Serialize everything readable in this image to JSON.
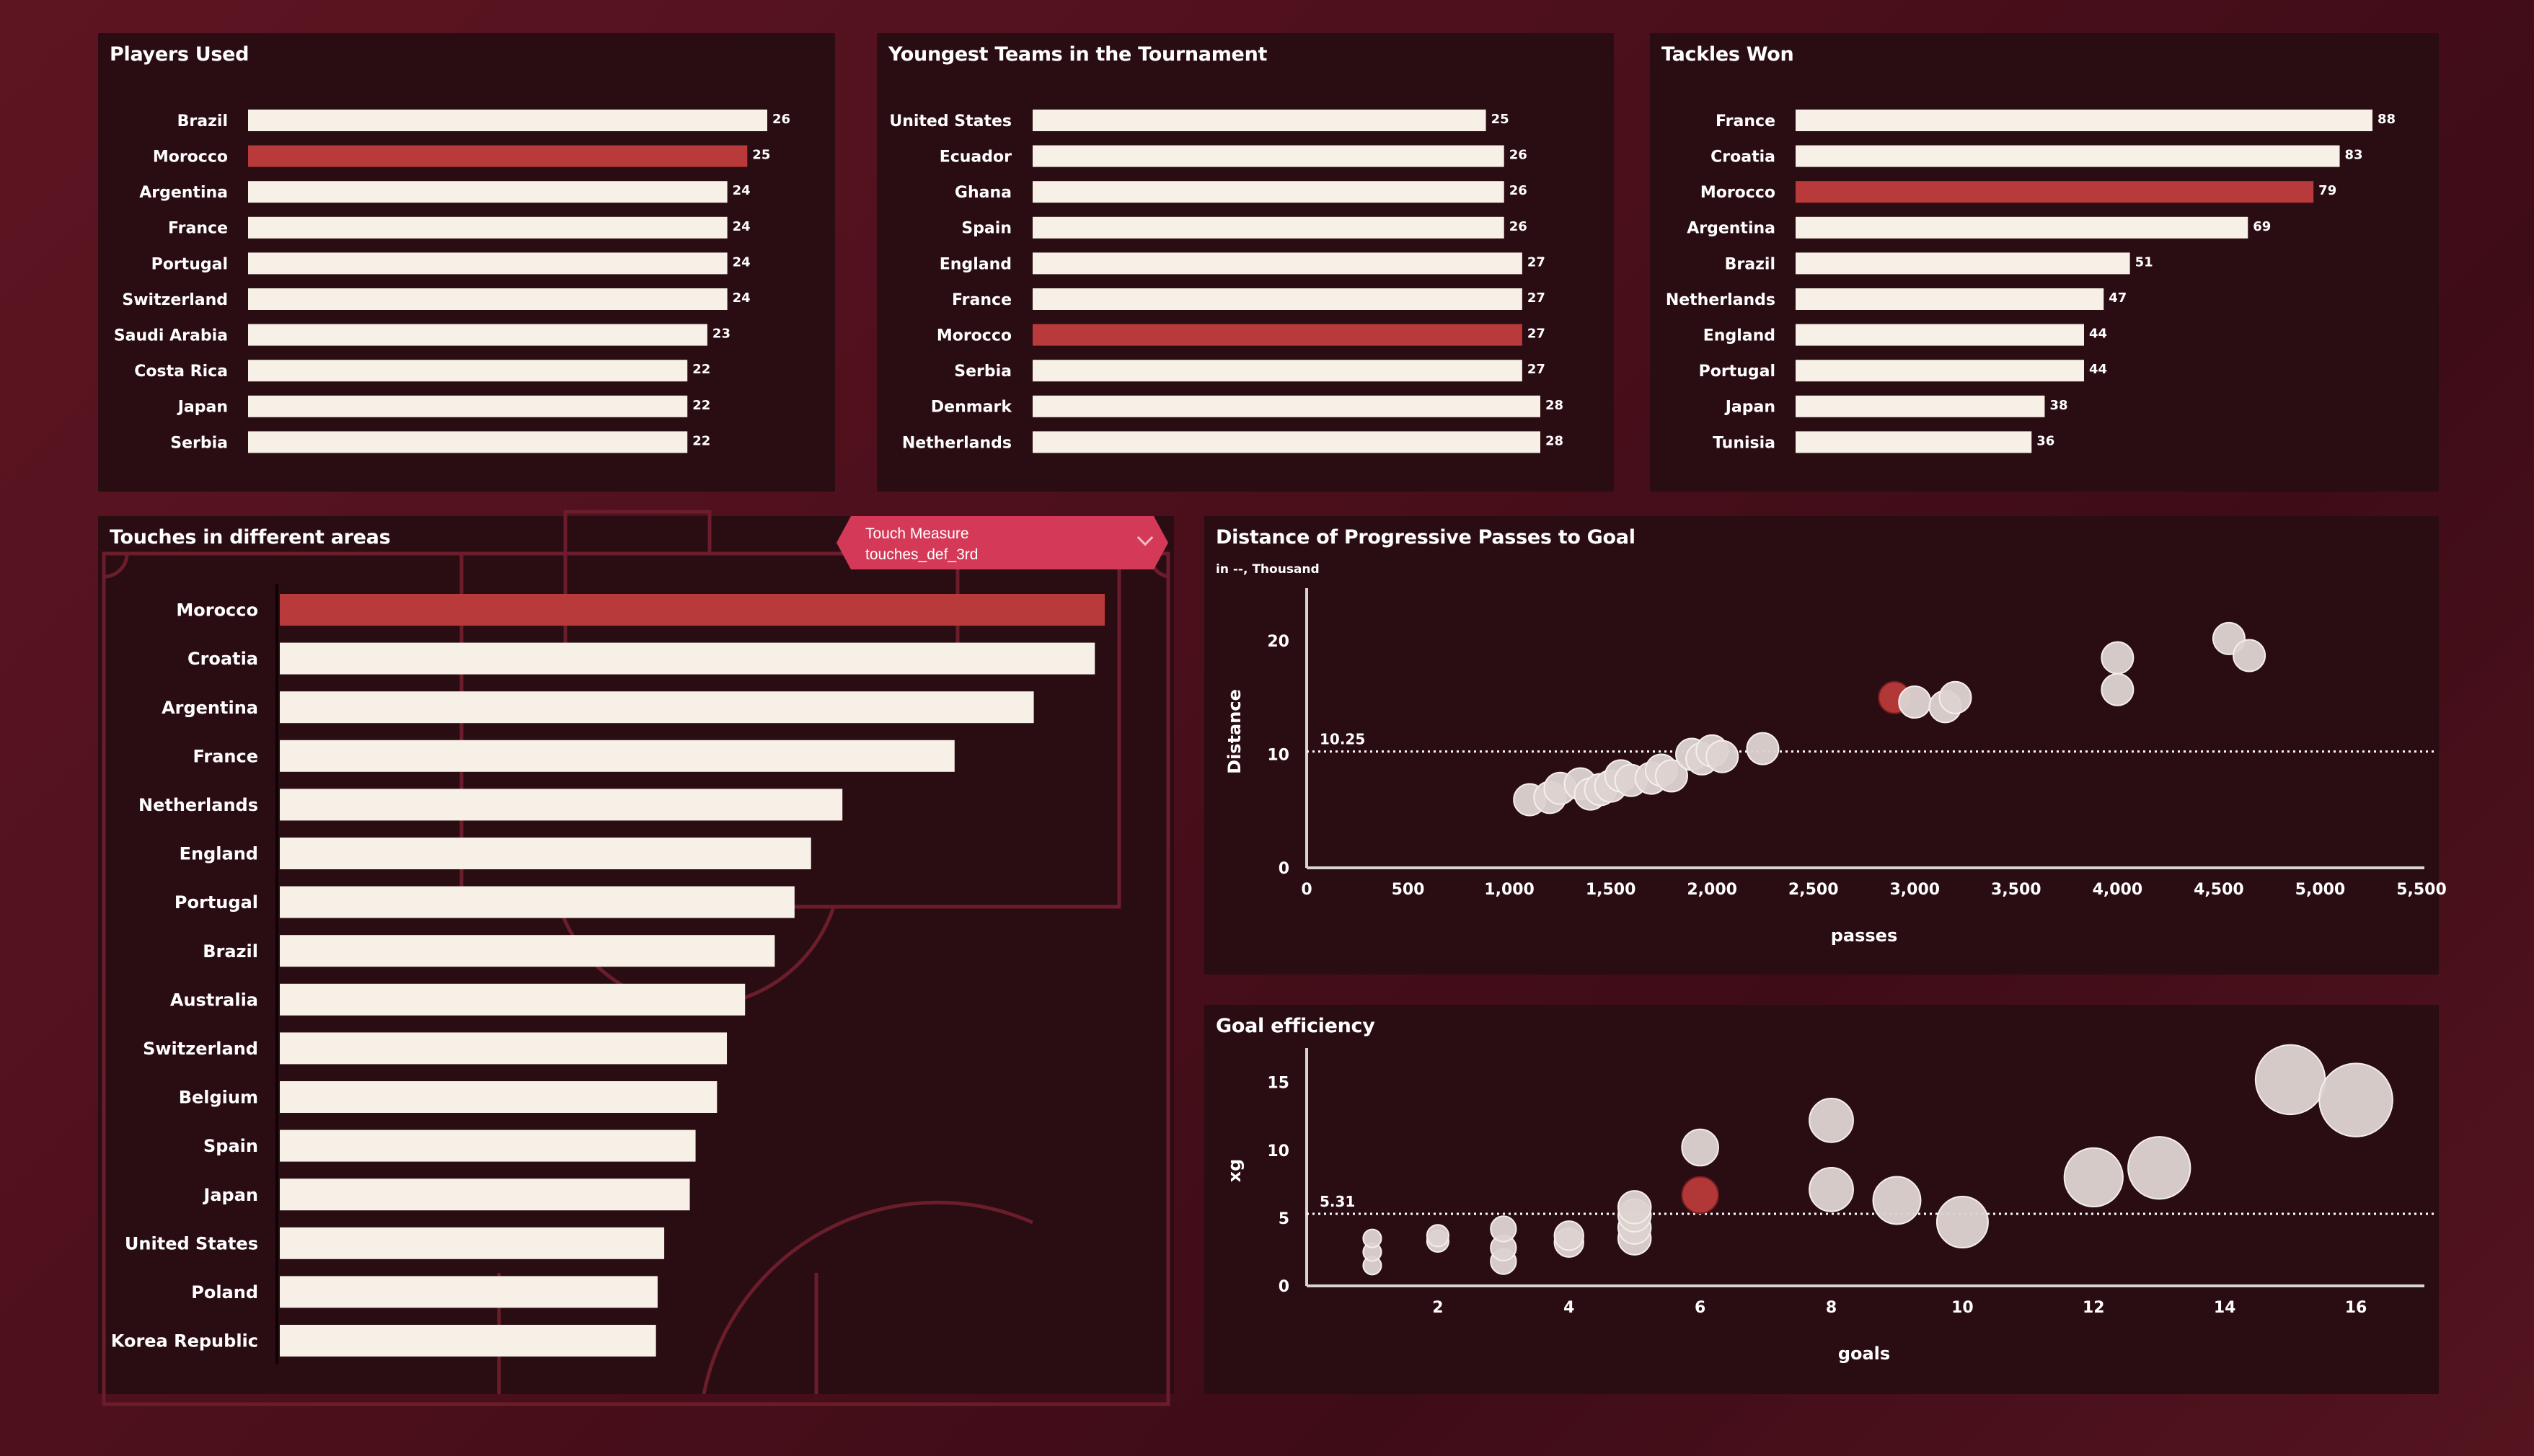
{
  "colors": {
    "highlight": "#b83a3a",
    "bar": "#f7f0e6",
    "bubble": "#ddd2cf",
    "panel": "#2a0c13",
    "pitch_line": "#6b1d2b"
  },
  "dropdown": {
    "label": "Touch Measure",
    "value": "touches_def_3rd",
    "icon": "chevron-down-icon"
  },
  "chart_data": [
    {
      "id": "players_used",
      "type": "bar",
      "orientation": "horizontal",
      "title": "Players Used",
      "categories": [
        "Brazil",
        "Morocco",
        "Argentina",
        "France",
        "Portugal",
        "Switzerland",
        "Saudi Arabia",
        "Costa Rica",
        "Japan",
        "Serbia"
      ],
      "values": [
        26,
        25,
        24,
        24,
        24,
        24,
        23,
        22,
        22,
        22
      ],
      "highlight": "Morocco",
      "xlim": [
        0,
        26
      ]
    },
    {
      "id": "youngest_teams",
      "type": "bar",
      "orientation": "horizontal",
      "title": "Youngest Teams in the Tournament",
      "categories": [
        "United States",
        "Ecuador",
        "Ghana",
        "Spain",
        "England",
        "France",
        "Morocco",
        "Serbia",
        "Denmark",
        "Netherlands"
      ],
      "values": [
        25,
        26,
        26,
        26,
        27,
        27,
        27,
        27,
        28,
        28
      ],
      "highlight": "Morocco",
      "xlim": [
        0,
        28
      ]
    },
    {
      "id": "tackles_won",
      "type": "bar",
      "orientation": "horizontal",
      "title": "Tackles Won",
      "categories": [
        "France",
        "Croatia",
        "Morocco",
        "Argentina",
        "Brazil",
        "Netherlands",
        "England",
        "Portugal",
        "Japan",
        "Tunisia"
      ],
      "values": [
        88,
        83,
        79,
        69,
        51,
        47,
        44,
        44,
        38,
        36
      ],
      "highlight": "Morocco",
      "xlim": [
        0,
        88
      ]
    },
    {
      "id": "touches_areas",
      "type": "bar",
      "orientation": "horizontal",
      "title": "Touches in different areas",
      "categories": [
        "Morocco",
        "Croatia",
        "Argentina",
        "France",
        "Netherlands",
        "England",
        "Portugal",
        "Brazil",
        "Australia",
        "Switzerland",
        "Belgium",
        "Spain",
        "Japan",
        "United States",
        "Poland",
        "Korea Republic"
      ],
      "values": [
        1000,
        988,
        914,
        818,
        682,
        644,
        624,
        600,
        564,
        542,
        530,
        504,
        497,
        466,
        458,
        456
      ],
      "highlight": "Morocco",
      "xlim": [
        0,
        1000
      ]
    },
    {
      "id": "progressive_passes",
      "type": "scatter",
      "title": "Distance of Progressive Passes to Goal",
      "subtitle": "in --, Thousand",
      "xlabel": "passes",
      "ylabel": "Distance",
      "xlim": [
        0,
        5500
      ],
      "ylim": [
        0,
        24
      ],
      "xticks": [
        "0",
        "500",
        "1,000",
        "1,500",
        "2,000",
        "2,500",
        "3,000",
        "3,500",
        "4,000",
        "4,500",
        "5,000",
        "5,500"
      ],
      "xtick_values": [
        0,
        500,
        1000,
        1500,
        2000,
        2500,
        3000,
        3500,
        4000,
        4500,
        5000,
        5500
      ],
      "yticks": [
        "0",
        "10",
        "20"
      ],
      "ytick_values": [
        0,
        10,
        20
      ],
      "reference_line": {
        "value": 10.25,
        "label": "10.25"
      },
      "points": [
        {
          "x": 2900,
          "y": 15,
          "highlight": true
        },
        {
          "x": 3000,
          "y": 14.6
        },
        {
          "x": 3150,
          "y": 14.2
        },
        {
          "x": 3200,
          "y": 15
        },
        {
          "x": 4000,
          "y": 18.5
        },
        {
          "x": 4000,
          "y": 15.7
        },
        {
          "x": 4550,
          "y": 20.2
        },
        {
          "x": 4650,
          "y": 18.7
        },
        {
          "x": 1100,
          "y": 6
        },
        {
          "x": 1200,
          "y": 6.2
        },
        {
          "x": 1250,
          "y": 7
        },
        {
          "x": 1350,
          "y": 7.4
        },
        {
          "x": 1400,
          "y": 6.5
        },
        {
          "x": 1450,
          "y": 6.9
        },
        {
          "x": 1500,
          "y": 7.2
        },
        {
          "x": 1550,
          "y": 8.1
        },
        {
          "x": 1600,
          "y": 7.7
        },
        {
          "x": 1700,
          "y": 7.9
        },
        {
          "x": 1750,
          "y": 8.6
        },
        {
          "x": 1800,
          "y": 8.1
        },
        {
          "x": 1900,
          "y": 10
        },
        {
          "x": 1950,
          "y": 9.6
        },
        {
          "x": 2000,
          "y": 10.3
        },
        {
          "x": 2050,
          "y": 9.8
        },
        {
          "x": 2250,
          "y": 10.5
        }
      ]
    },
    {
      "id": "goal_efficiency",
      "type": "scatter",
      "title": "Goal efficiency",
      "xlabel": "goals",
      "ylabel": "xg",
      "xlim": [
        0,
        17
      ],
      "ylim": [
        0,
        17
      ],
      "xticks": [
        "2",
        "4",
        "6",
        "8",
        "10",
        "12",
        "14",
        "16"
      ],
      "xtick_values": [
        2,
        4,
        6,
        8,
        10,
        12,
        14,
        16
      ],
      "yticks": [
        "0",
        "5",
        "10",
        "15"
      ],
      "ytick_values": [
        0,
        5,
        10,
        15
      ],
      "reference_line": {
        "value": 5.31,
        "label": "5.31"
      },
      "points": [
        {
          "x": 1,
          "y": 1.5,
          "r": 1
        },
        {
          "x": 1,
          "y": 2.5,
          "r": 1
        },
        {
          "x": 1,
          "y": 3.5,
          "r": 1
        },
        {
          "x": 2,
          "y": 3.3,
          "r": 2
        },
        {
          "x": 2,
          "y": 3.7,
          "r": 2
        },
        {
          "x": 3,
          "y": 1.8,
          "r": 3
        },
        {
          "x": 3,
          "y": 2.8,
          "r": 3
        },
        {
          "x": 3,
          "y": 4.2,
          "r": 3
        },
        {
          "x": 4,
          "y": 3.2,
          "r": 4
        },
        {
          "x": 4,
          "y": 3.7,
          "r": 4
        },
        {
          "x": 5,
          "y": 3.5,
          "r": 5
        },
        {
          "x": 5,
          "y": 4.3,
          "r": 5
        },
        {
          "x": 5,
          "y": 5.2,
          "r": 5
        },
        {
          "x": 5,
          "y": 5.8,
          "r": 5
        },
        {
          "x": 6,
          "y": 10.2,
          "r": 6
        },
        {
          "x": 6,
          "y": 6.7,
          "r": 6,
          "highlight": true
        },
        {
          "x": 8,
          "y": 12.2,
          "r": 8
        },
        {
          "x": 8,
          "y": 7.1,
          "r": 8
        },
        {
          "x": 9,
          "y": 6.3,
          "r": 9
        },
        {
          "x": 10,
          "y": 4.7,
          "r": 10
        },
        {
          "x": 12,
          "y": 8.0,
          "r": 12
        },
        {
          "x": 13,
          "y": 8.7,
          "r": 13
        },
        {
          "x": 15,
          "y": 15.2,
          "r": 15
        },
        {
          "x": 16,
          "y": 13.7,
          "r": 16
        }
      ]
    }
  ]
}
